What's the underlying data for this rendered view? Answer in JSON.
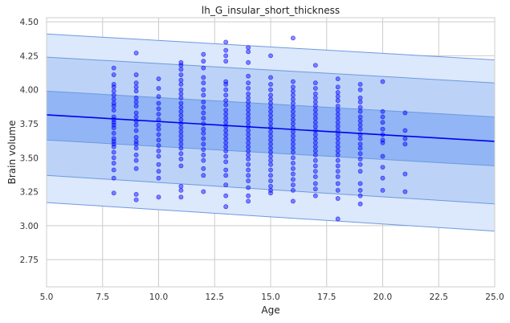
{
  "chart_data": {
    "type": "scatter",
    "title": "lh_G_insular_short_thickness",
    "xlabel": "Age",
    "ylabel": "Brain volume",
    "xlim": [
      5.0,
      25.0
    ],
    "ylim": [
      2.55,
      4.53
    ],
    "x_ticks": [
      "5.0",
      "7.5",
      "10.0",
      "12.5",
      "15.0",
      "17.5",
      "20.0",
      "22.5",
      "25.0"
    ],
    "y_ticks": [
      "2.75",
      "3.00",
      "3.25",
      "3.50",
      "3.75",
      "4.00",
      "4.25",
      "4.50"
    ],
    "grid": true,
    "regression_line": {
      "x": [
        5,
        25
      ],
      "y": [
        3.815,
        3.62
      ]
    },
    "bands": [
      {
        "level": "outer",
        "lower": [
          3.17,
          2.96
        ],
        "upper": [
          4.41,
          4.22
        ]
      },
      {
        "level": "middle",
        "lower": [
          3.37,
          3.16
        ],
        "upper": [
          4.24,
          4.05
        ]
      },
      {
        "level": "inner",
        "lower": [
          3.63,
          3.44
        ],
        "upper": [
          3.99,
          3.8
        ]
      }
    ],
    "points_by_age": [
      {
        "x": 8,
        "y": [
          4.16,
          4.11,
          4.04,
          4.02,
          3.99,
          3.96,
          3.93,
          3.9,
          3.88,
          3.85,
          3.8,
          3.78,
          3.76,
          3.74,
          3.72,
          3.68,
          3.64,
          3.62,
          3.6,
          3.58,
          3.54,
          3.5,
          3.46,
          3.41,
          3.35,
          3.24
        ]
      },
      {
        "x": 9,
        "y": [
          4.27,
          4.11,
          4.05,
          4.02,
          3.99,
          3.94,
          3.91,
          3.88,
          3.83,
          3.8,
          3.77,
          3.74,
          3.7,
          3.65,
          3.62,
          3.6,
          3.57,
          3.52,
          3.48,
          3.42,
          3.23,
          3.19
        ]
      },
      {
        "x": 10,
        "y": [
          4.08,
          4.01,
          3.95,
          3.9,
          3.86,
          3.82,
          3.78,
          3.74,
          3.71,
          3.67,
          3.63,
          3.59,
          3.55,
          3.51,
          3.45,
          3.4,
          3.35,
          3.21
        ]
      },
      {
        "x": 11,
        "y": [
          4.2,
          4.18,
          4.15,
          4.11,
          4.07,
          4.04,
          4.0,
          3.97,
          3.94,
          3.9,
          3.87,
          3.84,
          3.81,
          3.78,
          3.75,
          3.72,
          3.69,
          3.66,
          3.63,
          3.6,
          3.57,
          3.53,
          3.49,
          3.44,
          3.29,
          3.26,
          3.21
        ]
      },
      {
        "x": 12,
        "y": [
          4.26,
          4.21,
          4.16,
          4.09,
          4.05,
          4.0,
          3.96,
          3.91,
          3.87,
          3.83,
          3.79,
          3.75,
          3.71,
          3.68,
          3.64,
          3.6,
          3.56,
          3.52,
          3.48,
          3.42,
          3.37,
          3.25
        ]
      },
      {
        "x": 13,
        "y": [
          4.35,
          4.29,
          4.25,
          4.21,
          4.06,
          4.04,
          4.0,
          3.96,
          3.92,
          3.89,
          3.85,
          3.82,
          3.79,
          3.76,
          3.73,
          3.7,
          3.67,
          3.64,
          3.61,
          3.58,
          3.55,
          3.51,
          3.47,
          3.41,
          3.37,
          3.3,
          3.22,
          3.14
        ]
      },
      {
        "x": 14,
        "y": [
          4.31,
          4.28,
          4.2,
          4.1,
          4.05,
          4.01,
          3.97,
          3.94,
          3.91,
          3.88,
          3.85,
          3.82,
          3.79,
          3.76,
          3.73,
          3.7,
          3.67,
          3.64,
          3.61,
          3.58,
          3.55,
          3.52,
          3.49,
          3.45,
          3.41,
          3.37,
          3.33,
          3.28,
          3.22,
          3.18
        ]
      },
      {
        "x": 15,
        "y": [
          4.25,
          4.09,
          4.04,
          4.0,
          3.96,
          3.93,
          3.9,
          3.87,
          3.84,
          3.81,
          3.78,
          3.75,
          3.72,
          3.69,
          3.66,
          3.63,
          3.6,
          3.57,
          3.54,
          3.51,
          3.48,
          3.45,
          3.41,
          3.37,
          3.33,
          3.29,
          3.26,
          3.24
        ]
      },
      {
        "x": 16,
        "y": [
          4.38,
          4.06,
          4.02,
          3.99,
          3.96,
          3.93,
          3.9,
          3.87,
          3.84,
          3.81,
          3.78,
          3.75,
          3.72,
          3.69,
          3.66,
          3.63,
          3.6,
          3.57,
          3.54,
          3.5,
          3.46,
          3.42,
          3.38,
          3.34,
          3.3,
          3.26,
          3.18
        ]
      },
      {
        "x": 17,
        "y": [
          4.18,
          4.05,
          4.01,
          3.97,
          3.94,
          3.91,
          3.88,
          3.85,
          3.82,
          3.79,
          3.76,
          3.73,
          3.7,
          3.67,
          3.64,
          3.61,
          3.58,
          3.55,
          3.52,
          3.48,
          3.44,
          3.4,
          3.36,
          3.31,
          3.27,
          3.22
        ]
      },
      {
        "x": 18,
        "y": [
          4.08,
          4.02,
          3.98,
          3.95,
          3.92,
          3.88,
          3.85,
          3.82,
          3.79,
          3.76,
          3.73,
          3.7,
          3.67,
          3.64,
          3.61,
          3.58,
          3.55,
          3.52,
          3.48,
          3.44,
          3.4,
          3.36,
          3.31,
          3.26,
          3.2,
          3.05
        ]
      },
      {
        "x": 19,
        "y": [
          4.04,
          4.0,
          3.94,
          3.91,
          3.87,
          3.84,
          3.8,
          3.77,
          3.74,
          3.71,
          3.67,
          3.64,
          3.6,
          3.57,
          3.53,
          3.49,
          3.45,
          3.4,
          3.31,
          3.26,
          3.22,
          3.16
        ]
      },
      {
        "x": 20,
        "y": [
          4.06,
          3.84,
          3.8,
          3.76,
          3.71,
          3.67,
          3.63,
          3.61,
          3.51,
          3.43,
          3.35,
          3.26
        ]
      },
      {
        "x": 21,
        "y": [
          3.83,
          3.7,
          3.64,
          3.6,
          3.38,
          3.25
        ]
      }
    ],
    "colors": {
      "points": "#0000ff",
      "line": "#0000ee",
      "band_outer": "#dce8fb",
      "band_middle": "#bcd3f7",
      "band_inner": "#91b5f5",
      "band_edge": "#6e99e0",
      "grid": "#cccccc"
    }
  }
}
